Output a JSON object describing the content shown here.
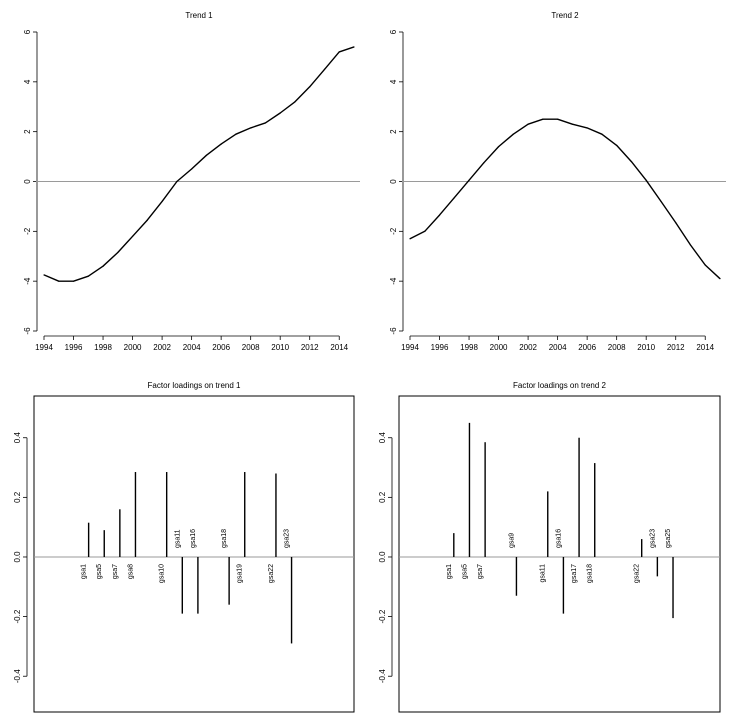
{
  "chart_data": [
    {
      "type": "line",
      "title": "Trend 1",
      "xlabel": "",
      "ylabel": "",
      "x": [
        1994,
        1995,
        1996,
        1997,
        1998,
        1999,
        2000,
        2001,
        2002,
        2003,
        2004,
        2005,
        2006,
        2007,
        2008,
        2009,
        2010,
        2011,
        2012,
        2013,
        2014,
        2015
      ],
      "values": [
        -3.75,
        -4.0,
        -4.0,
        -3.8,
        -3.4,
        -2.85,
        -2.2,
        -1.55,
        -0.8,
        0.0,
        0.5,
        1.05,
        1.5,
        1.9,
        2.15,
        2.35,
        2.75,
        3.2,
        3.8,
        4.5,
        5.2,
        5.4
      ],
      "xticks": [
        "1994",
        "1996",
        "1998",
        "2000",
        "2002",
        "2004",
        "2006",
        "2008",
        "2010",
        "2012",
        "2014"
      ],
      "yticks": [
        "-6",
        "-4",
        "-2",
        "0",
        "2",
        "4",
        "6"
      ],
      "ylim": [
        -6,
        6
      ],
      "xlim": [
        1994,
        2015
      ],
      "reference_line": 0,
      "box": false
    },
    {
      "type": "line",
      "title": "Trend 2",
      "xlabel": "",
      "ylabel": "",
      "x": [
        1994,
        1995,
        1996,
        1997,
        1998,
        1999,
        2000,
        2001,
        2002,
        2003,
        2004,
        2005,
        2006,
        2007,
        2008,
        2009,
        2010,
        2011,
        2012,
        2013,
        2014,
        2015
      ],
      "values": [
        -2.3,
        -2.0,
        -1.35,
        -0.65,
        0.05,
        0.75,
        1.4,
        1.9,
        2.3,
        2.5,
        2.5,
        2.3,
        2.15,
        1.9,
        1.45,
        0.8,
        0.05,
        -0.8,
        -1.65,
        -2.55,
        -3.35,
        -3.9
      ],
      "xticks": [
        "1994",
        "1996",
        "1998",
        "2000",
        "2002",
        "2004",
        "2006",
        "2008",
        "2010",
        "2012",
        "2014"
      ],
      "yticks": [
        "-6",
        "-4",
        "-2",
        "0",
        "2",
        "4",
        "6"
      ],
      "ylim": [
        -6,
        6
      ],
      "xlim": [
        1994,
        2015
      ],
      "reference_line": 0,
      "box": false
    },
    {
      "type": "bar",
      "title": "Factor loadings on trend 1",
      "xlabel": "",
      "ylabel": "",
      "categories": [
        "gsa1",
        "gsa5",
        "gsa7",
        "gsa8",
        "gsa10",
        "gsa11",
        "gsa16",
        "gsa18",
        "gsa19",
        "gsa22",
        "gsa23"
      ],
      "positions": [
        1,
        2,
        3,
        4,
        6,
        7,
        8,
        10,
        11,
        13,
        14
      ],
      "values": [
        0.115,
        0.09,
        0.16,
        0.285,
        0.285,
        -0.19,
        -0.19,
        -0.16,
        0.285,
        0.28,
        -0.29
      ],
      "yticks": [
        "-0.4",
        "-0.2",
        "0.0",
        "0.2",
        "0.4"
      ],
      "ylim": [
        -0.52,
        0.54
      ],
      "xlim": [
        -2.5,
        18
      ],
      "reference_line": 0,
      "box": true
    },
    {
      "type": "bar",
      "title": "Factor loadings on trend 2",
      "xlabel": "",
      "ylabel": "",
      "categories": [
        "gsa1",
        "gsa5",
        "gsa7",
        "gsa9",
        "gsa11",
        "gsa16",
        "gsa17",
        "gsa18",
        "gsa22",
        "gsa23",
        "gsa25"
      ],
      "positions": [
        1,
        2,
        3,
        5,
        7,
        8,
        9,
        10,
        13,
        14,
        15
      ],
      "values": [
        0.08,
        0.45,
        0.385,
        -0.13,
        0.22,
        -0.19,
        0.4,
        0.315,
        0.06,
        -0.065,
        -0.205
      ],
      "yticks": [
        "-0.4",
        "-0.2",
        "0.0",
        "0.2",
        "0.4"
      ],
      "ylim": [
        -0.52,
        0.54
      ],
      "xlim": [
        -2.5,
        18
      ],
      "reference_line": 0,
      "box": true
    }
  ],
  "colors": {
    "line": "#000000",
    "reference": "#9a9a9a",
    "frame": "#000000"
  }
}
